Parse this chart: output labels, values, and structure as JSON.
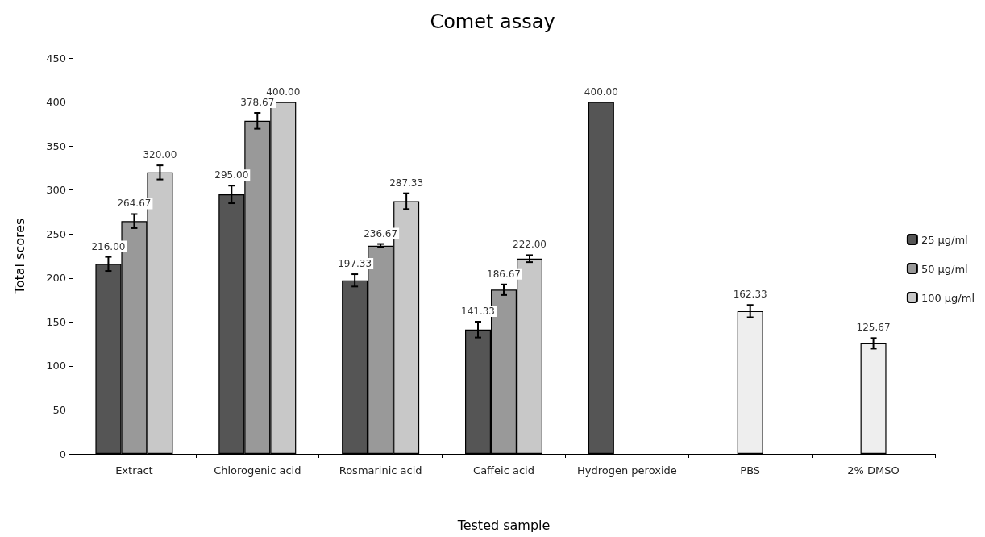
{
  "chart_data": {
    "type": "bar",
    "title": "Comet assay",
    "xlabel": "Tested sample",
    "ylabel": "Total scores",
    "categories": [
      "Extract",
      "Chlorogenic acid",
      "Rosmarinic acid",
      "Caffeic acid",
      "Hydrogen peroxide",
      "PBS",
      "2% DMSO"
    ],
    "series": [
      {
        "name": "25 µg/ml",
        "color": "#555555",
        "values": [
          216,
          295,
          197.33,
          141.33,
          400,
          null,
          null
        ],
        "errors": [
          8,
          10,
          7,
          9,
          null,
          null,
          null
        ],
        "value_labels": [
          "216.00",
          "295.00",
          "197.33",
          "141.33",
          "400.00",
          null,
          null
        ]
      },
      {
        "name": "50 µg/ml",
        "color": "#999999",
        "values": [
          264.67,
          378.67,
          236.67,
          186.67,
          null,
          null,
          null
        ],
        "errors": [
          8,
          9,
          2,
          6,
          null,
          null,
          null
        ],
        "value_labels": [
          "264.67",
          "378.67",
          "236.67",
          "186.67",
          null,
          null,
          null
        ]
      },
      {
        "name": "100 µg/ml",
        "color": "#c8c8c8",
        "values": [
          320,
          400,
          287.33,
          222,
          null,
          null,
          null
        ],
        "errors": [
          8,
          null,
          9,
          4,
          null,
          null,
          null
        ],
        "value_labels": [
          "320.00",
          "400.00",
          "287.33",
          "222.00",
          null,
          null,
          null
        ]
      },
      {
        "color": "#eeeeee",
        "values": [
          null,
          null,
          null,
          null,
          null,
          162.33,
          125.67
        ],
        "errors": [
          null,
          null,
          null,
          null,
          null,
          7,
          6
        ],
        "value_labels": [
          null,
          null,
          null,
          null,
          null,
          "162.33",
          "125.67"
        ]
      }
    ],
    "ylim": [
      0,
      450
    ],
    "yticks": [
      0,
      50,
      100,
      150,
      200,
      250,
      300,
      350,
      400,
      450
    ],
    "grid": false,
    "legend": "right"
  }
}
